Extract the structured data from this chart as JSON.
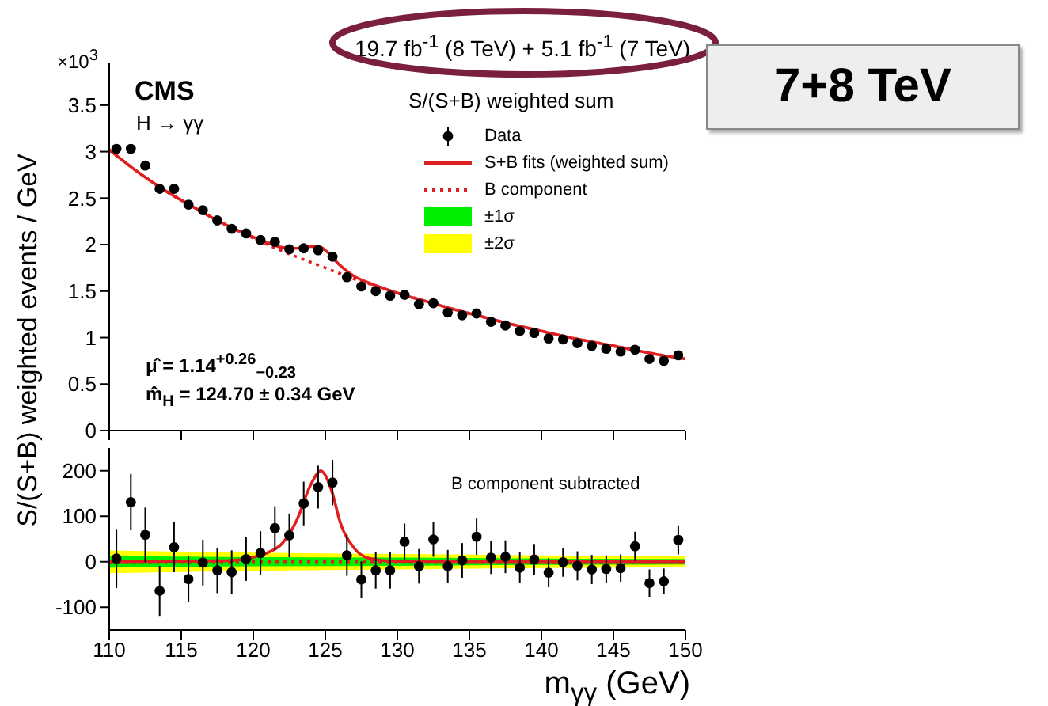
{
  "chart_data": [
    {
      "type": "scatter",
      "title": "19.7 fb$^{-1}$ (8 TeV) + 5.1 fb$^{-1}$ (7 TeV)",
      "ylabel": "S/(S+B) weighted events / GeV",
      "legend": "top right",
      "legend_title": "S/(S+B) weighted sum",
      "tick_labels": "y",
      "annotations": [
        "CMS",
        "H → γγ",
        "×10$^{3}$",
        "μ̂  = 1.14$^{+0.26}$$_{−0.23}$",
        "m̂$_{H}$ = 124.70 ± 0.34 GeV",
        "7+8 TeV"
      ],
      "xlim": [
        110,
        150
      ],
      "xticks": [
        110,
        115,
        120,
        125,
        130,
        135,
        140,
        145,
        150
      ],
      "ylim": [
        0,
        3.95
      ],
      "yticks": [
        0,
        0.5,
        1,
        1.5,
        2,
        2.5,
        3,
        3.5
      ],
      "series": [
        {
          "name": "Data",
          "marker": "circle",
          "color": "#000000",
          "x": [
            110.5,
            111.5,
            112.5,
            113.5,
            114.5,
            115.5,
            116.5,
            117.5,
            118.5,
            119.5,
            120.5,
            121.5,
            122.5,
            123.5,
            124.5,
            125.5,
            126.5,
            127.5,
            128.5,
            129.5,
            130.5,
            131.5,
            132.5,
            133.5,
            134.5,
            135.5,
            136.5,
            137.5,
            138.5,
            139.5,
            140.5,
            141.5,
            142.5,
            143.5,
            144.5,
            145.5,
            146.5,
            147.5,
            148.5,
            149.5
          ],
          "values": [
            3.03,
            3.03,
            2.85,
            2.6,
            2.6,
            2.43,
            2.37,
            2.26,
            2.17,
            2.12,
            2.05,
            2.03,
            1.95,
            1.96,
            1.94,
            1.87,
            1.65,
            1.55,
            1.5,
            1.45,
            1.46,
            1.36,
            1.37,
            1.27,
            1.24,
            1.26,
            1.17,
            1.13,
            1.07,
            1.05,
            0.99,
            0.98,
            0.94,
            0.91,
            0.88,
            0.85,
            0.87,
            0.77,
            0.75,
            0.81
          ],
          "errors": [
            0.04,
            0.04,
            0.04,
            0.04,
            0.04,
            0.04,
            0.04,
            0.04,
            0.04,
            0.04,
            0.04,
            0.04,
            0.04,
            0.04,
            0.04,
            0.04,
            0.04,
            0.04,
            0.04,
            0.04,
            0.04,
            0.04,
            0.04,
            0.04,
            0.04,
            0.04,
            0.04,
            0.04,
            0.04,
            0.04,
            0.04,
            0.04,
            0.04,
            0.04,
            0.04,
            0.04,
            0.04,
            0.04,
            0.04,
            0.04
          ]
        },
        {
          "name": "S+B fits (weighted sum)",
          "type": "line",
          "color": "#e02020",
          "x": [
            110,
            112,
            114,
            116,
            118,
            120,
            121,
            122,
            123,
            124,
            124.7,
            125,
            126,
            127,
            128,
            130,
            132,
            134,
            136,
            138,
            140,
            142,
            144,
            146,
            148,
            150
          ],
          "values": [
            3.02,
            2.78,
            2.57,
            2.39,
            2.22,
            2.08,
            2.02,
            1.97,
            1.96,
            1.98,
            1.97,
            1.94,
            1.78,
            1.66,
            1.59,
            1.48,
            1.39,
            1.3,
            1.22,
            1.14,
            1.07,
            1.0,
            0.94,
            0.88,
            0.82,
            0.77
          ]
        },
        {
          "name": "B component",
          "type": "line",
          "line_style": "dotted",
          "color": "#e02020",
          "x": [
            110,
            112,
            114,
            116,
            118,
            120,
            121,
            122,
            123,
            124,
            124.7,
            125,
            126,
            127,
            128,
            130,
            132,
            134,
            136,
            138,
            140,
            142,
            144,
            146,
            148,
            150
          ],
          "values": [
            3.02,
            2.78,
            2.57,
            2.39,
            2.22,
            2.07,
            2.0,
            1.93,
            1.87,
            1.81,
            1.77,
            1.75,
            1.69,
            1.63,
            1.58,
            1.48,
            1.39,
            1.3,
            1.22,
            1.14,
            1.07,
            1.0,
            0.94,
            0.88,
            0.82,
            0.77
          ]
        }
      ]
    },
    {
      "type": "scatter",
      "xlabel": "m$_{γγ}$ (GeV)",
      "annotations": [
        "B component subtracted"
      ],
      "xlim": [
        110,
        150
      ],
      "xticks": [
        110,
        115,
        120,
        125,
        130,
        135,
        140,
        145,
        150
      ],
      "ylim": [
        -150,
        250
      ],
      "yticks": [
        -100,
        0,
        100,
        200
      ],
      "series": [
        {
          "marker": "circle",
          "color": "#000000",
          "x": [
            110.5,
            111.5,
            112.5,
            113.5,
            114.5,
            115.5,
            116.5,
            117.5,
            118.5,
            119.5,
            120.5,
            121.5,
            122.5,
            123.5,
            124.5,
            125.5,
            126.5,
            127.5,
            128.5,
            129.5,
            130.5,
            131.5,
            132.5,
            133.5,
            134.5,
            135.5,
            136.5,
            137.5,
            138.5,
            139.5,
            140.5,
            141.5,
            142.5,
            143.5,
            144.5,
            145.5,
            146.5,
            147.5,
            148.5,
            149.5
          ],
          "values": [
            7,
            131,
            59,
            -64,
            32,
            -38,
            -2,
            -19,
            -23,
            6,
            19,
            74,
            58,
            128,
            164,
            174,
            14,
            -39,
            -19,
            -19,
            44,
            -10,
            49,
            -10,
            3,
            55,
            9,
            11,
            -13,
            5,
            -24,
            -1,
            -9,
            -17,
            -16,
            -14,
            34,
            -47,
            -43,
            48
          ],
          "errors": [
            65,
            62,
            60,
            55,
            55,
            50,
            50,
            50,
            48,
            48,
            48,
            48,
            48,
            48,
            47,
            50,
            45,
            40,
            40,
            40,
            40,
            38,
            38,
            36,
            38,
            40,
            36,
            36,
            34,
            34,
            32,
            32,
            32,
            32,
            30,
            30,
            32,
            30,
            28,
            32
          ]
        },
        {
          "type": "line",
          "color": "#e02020",
          "x": [
            110,
            118,
            120,
            121,
            122,
            123,
            124,
            124.7,
            125,
            125.5,
            126,
            127,
            128,
            130,
            140,
            150
          ],
          "values": [
            0,
            2,
            10,
            20,
            40,
            90,
            170,
            200,
            190,
            150,
            90,
            30,
            8,
            1,
            0,
            0
          ]
        },
        {
          "type": "line",
          "line_style": "dotted",
          "color": "#e02020",
          "x": [
            110,
            150
          ],
          "values": [
            0,
            0
          ]
        },
        {
          "name": "±1σ",
          "type": "area",
          "color": "#00ee00",
          "x": [
            110,
            120,
            130,
            140,
            150
          ],
          "values": [
            null,
            null,
            null,
            null,
            null
          ],
          "lower": [
            -13,
            -10,
            -9,
            -7,
            -6
          ],
          "upper": [
            13,
            10,
            9,
            7,
            6
          ]
        },
        {
          "name": "±2σ",
          "type": "area",
          "color": "#ffff00",
          "x": [
            110,
            120,
            130,
            140,
            150
          ],
          "values": [
            null,
            null,
            null,
            null,
            null
          ],
          "lower": [
            -25,
            -20,
            -17,
            -14,
            -12
          ],
          "upper": [
            25,
            20,
            17,
            14,
            12
          ]
        }
      ]
    }
  ]
}
